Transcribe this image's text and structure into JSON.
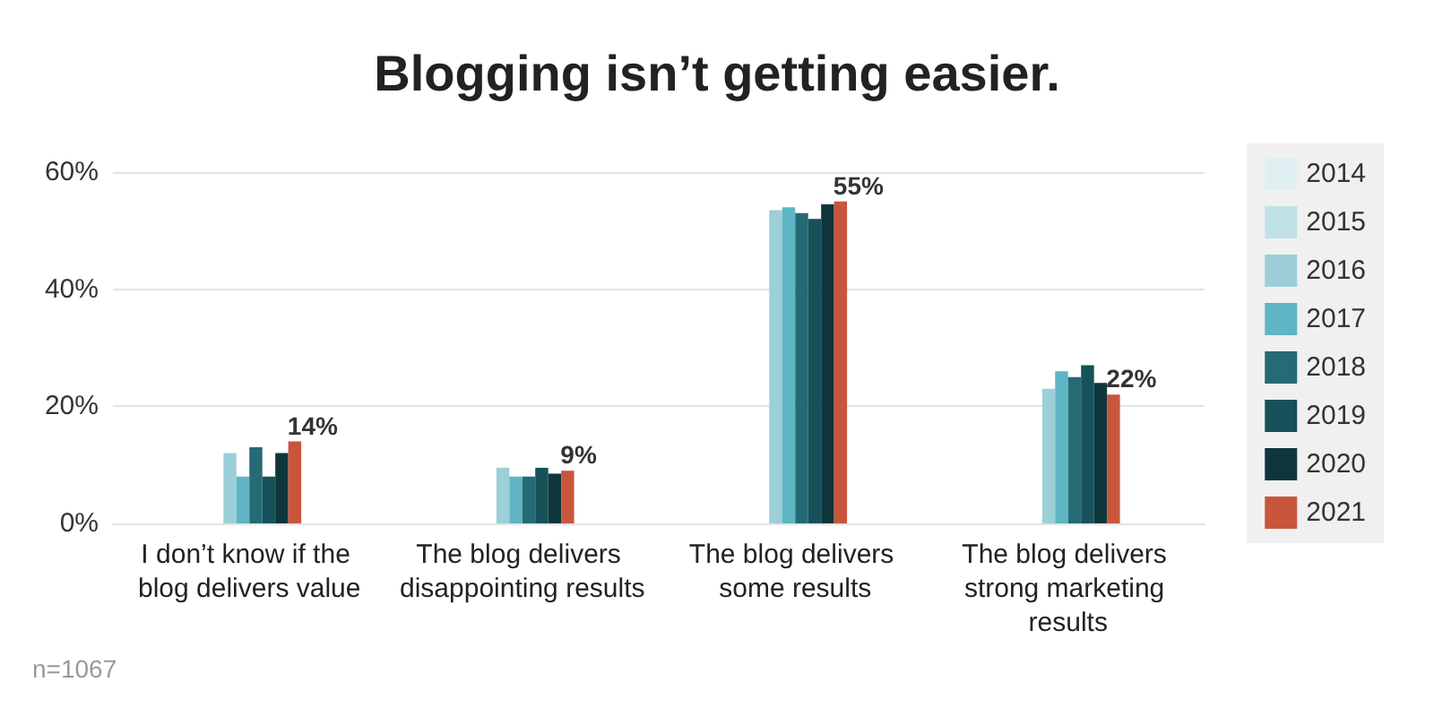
{
  "chart_data": {
    "type": "bar",
    "title": "Blogging isn’t getting easier.",
    "categories": [
      "I don’t know if the blog delivers value",
      "The blog delivers disappointing results",
      "The blog delivers some results",
      "The blog delivers strong marketing results"
    ],
    "series": [
      {
        "name": "2014",
        "color": "#e0f0f2",
        "values": [
          null,
          null,
          null,
          null
        ]
      },
      {
        "name": "2015",
        "color": "#c0e2e7",
        "values": [
          null,
          null,
          null,
          null
        ]
      },
      {
        "name": "2016",
        "color": "#9ccfd8",
        "values": [
          12,
          9.5,
          53.5,
          23
        ]
      },
      {
        "name": "2017",
        "color": "#5fb5c3",
        "values": [
          8,
          8,
          54,
          26
        ]
      },
      {
        "name": "2018",
        "color": "#256a75",
        "values": [
          13,
          8,
          53,
          25
        ]
      },
      {
        "name": "2019",
        "color": "#175159",
        "values": [
          8,
          9.5,
          52,
          27
        ]
      },
      {
        "name": "2020",
        "color": "#0f363d",
        "values": [
          12,
          8.5,
          54.5,
          24
        ]
      },
      {
        "name": "2021",
        "color": "#c9563c",
        "values": [
          14,
          9,
          55,
          22
        ],
        "value_labels": [
          "14%",
          "9%",
          "55%",
          "22%"
        ]
      }
    ],
    "ylim": [
      0,
      60
    ],
    "yticks": [
      {
        "value": 0,
        "label": "0%"
      },
      {
        "value": 20,
        "label": "20%"
      },
      {
        "value": 40,
        "label": "40%"
      },
      {
        "value": 60,
        "label": "60%"
      }
    ],
    "grid": "y",
    "legend": "right",
    "annotations": [
      "n=1067"
    ]
  }
}
